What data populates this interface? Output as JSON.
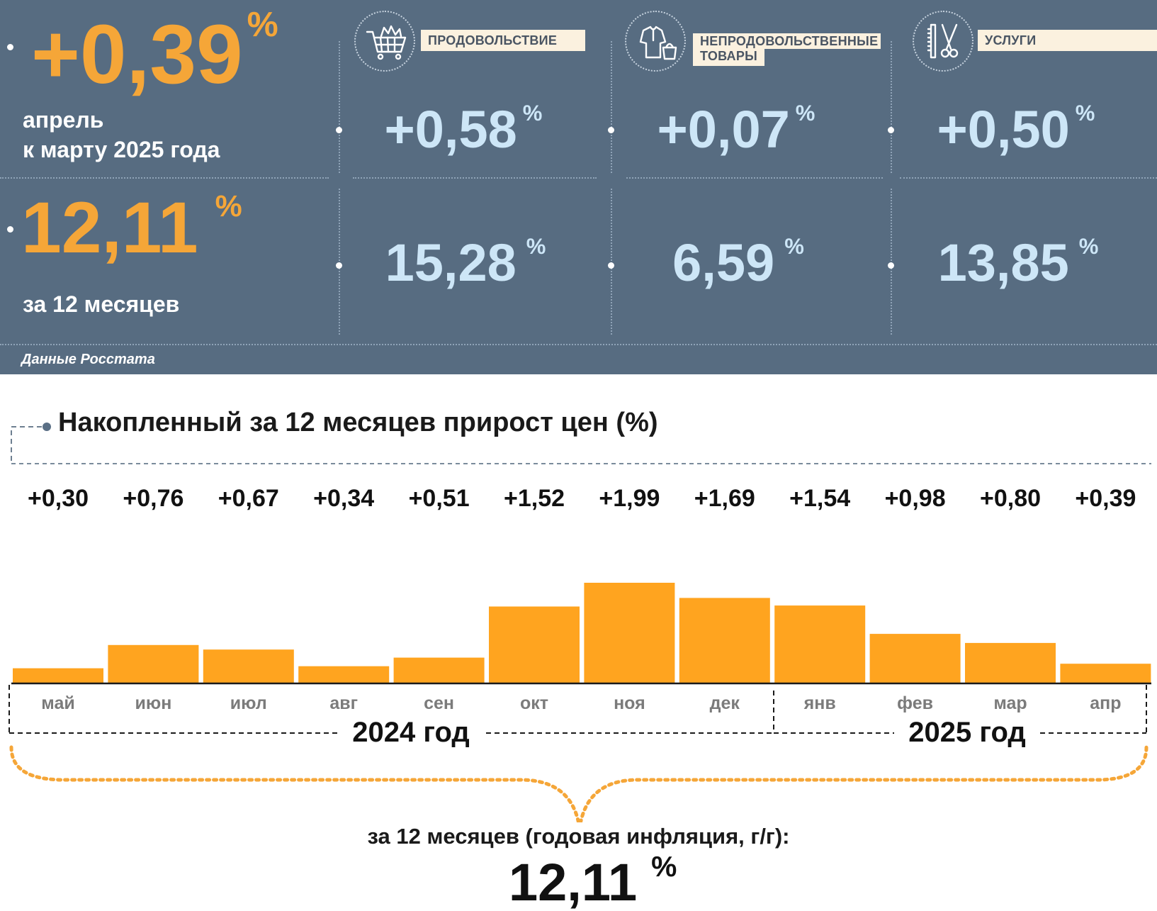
{
  "summary": {
    "monthly_value": "+0,39",
    "monthly_caption_line1": "апрель",
    "monthly_caption_line2": "к марту 2025 года",
    "annual_value": "12,11",
    "annual_caption": "за 12 месяцев",
    "percent_sign": "%",
    "source": "Данные Росстата"
  },
  "categories": [
    {
      "label": "ПРОДОВОЛЬСТВИЕ",
      "monthly": "+0,58",
      "annual": "15,28",
      "icon": "shopping-cart-icon"
    },
    {
      "label_line1": "НЕПРОДОВОЛЬСТВЕННЫЕ",
      "label_line2": "ТОВАРЫ",
      "monthly": "+0,07",
      "annual": "6,59",
      "icon": "clothes-bag-icon"
    },
    {
      "label": "УСЛУГИ",
      "monthly": "+0,50",
      "annual": "13,85",
      "icon": "comb-scissors-icon"
    }
  ],
  "chart_data": {
    "type": "bar",
    "title": "Накопленный за 12 месяцев прирост цен (%)",
    "categories": [
      "май",
      "июн",
      "июл",
      "авг",
      "сен",
      "окт",
      "ноя",
      "дек",
      "янв",
      "фев",
      "мар",
      "апр"
    ],
    "values": [
      0.3,
      0.76,
      0.67,
      0.34,
      0.51,
      1.52,
      1.99,
      1.69,
      1.54,
      0.98,
      0.8,
      0.39
    ],
    "value_labels": [
      "+0,30",
      "+0,76",
      "+0,67",
      "+0,34",
      "+0,51",
      "+1,52",
      "+1,99",
      "+1,69",
      "+1,54",
      "+0,98",
      "+0,80",
      "+0,39"
    ],
    "year_groups": [
      {
        "label": "2024 год",
        "months": 8
      },
      {
        "label": "2025 год",
        "months": 4
      }
    ],
    "bar_color": "#ffa41f",
    "total_caption": "за 12 месяцев (годовая инфляция, г/г):",
    "total_value": "12,11",
    "total_unit": "%"
  }
}
